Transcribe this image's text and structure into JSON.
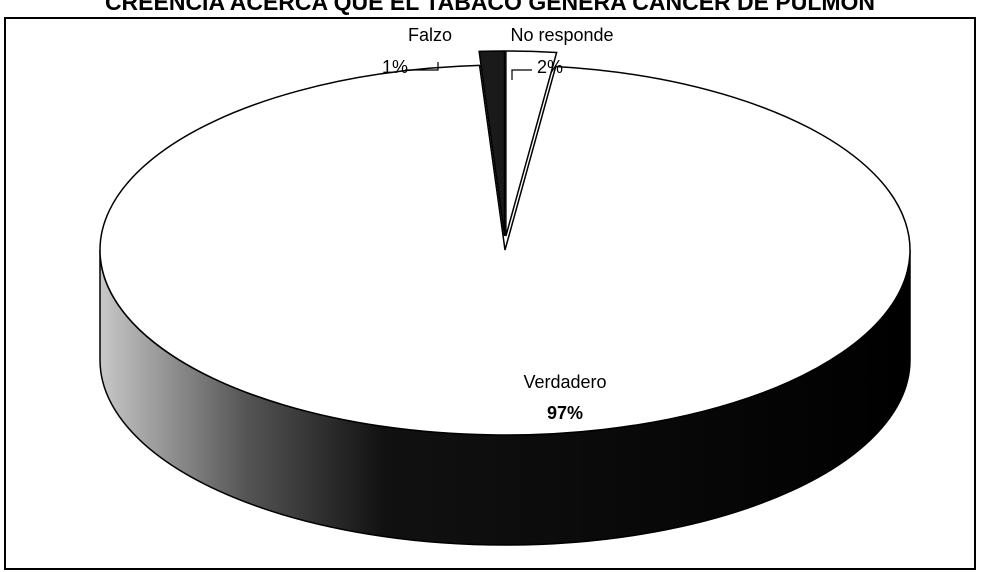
{
  "chart_data": {
    "type": "pie3d",
    "title": "CREENCIA ACERCA QUE EL TABACO GENERA CANCER DE PULMON",
    "categories": [
      "Verdadero",
      "Falzo",
      "No responde"
    ],
    "values": [
      97,
      1,
      2
    ],
    "value_labels": [
      "97%",
      "1%",
      "2%"
    ],
    "colors": [
      "#ffffff",
      "#1a1a1a",
      "#ffffff"
    ]
  }
}
